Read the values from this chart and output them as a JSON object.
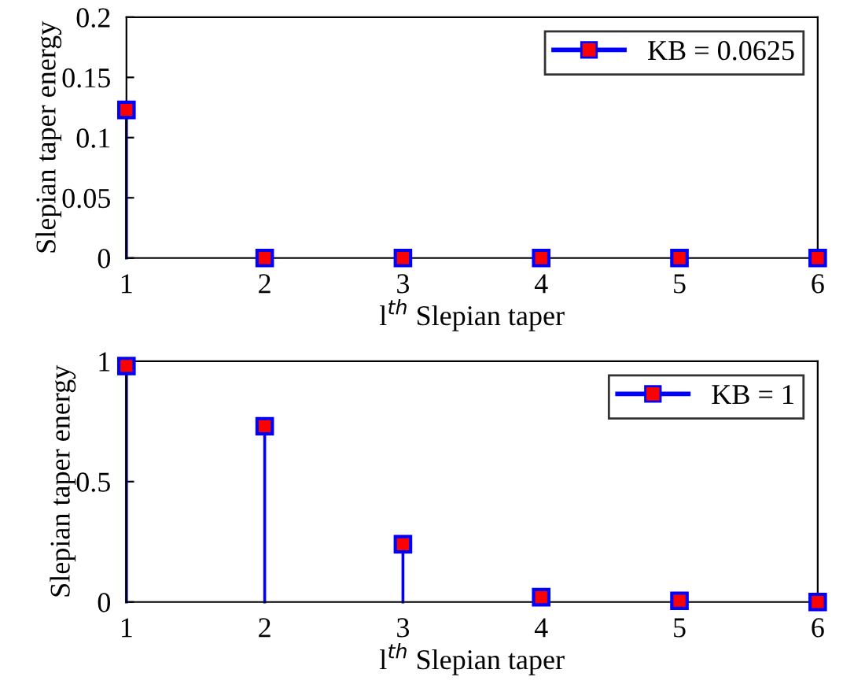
{
  "chart_data": [
    {
      "type": "lollipop",
      "xlabel": "l$^{th}$ Slepian taper",
      "ylabel": "Slepian taper energy",
      "x": [
        1,
        2,
        3,
        4,
        5,
        6
      ],
      "xlim": [
        1,
        6
      ],
      "xticks": [
        1,
        2,
        3,
        4,
        5,
        6
      ],
      "ylim": [
        0,
        0.2
      ],
      "yticks": [
        0,
        0.05,
        0.1,
        0.15,
        0.2
      ],
      "marker": "square",
      "legend": "top right",
      "series": [
        {
          "name": "KB = 0.0625",
          "color": "#0000ff",
          "values": [
            0.123,
            0,
            0,
            0,
            0,
            0
          ]
        }
      ]
    },
    {
      "type": "lollipop",
      "xlabel": "l$^{th}$ Slepian taper",
      "ylabel": "Slepian taper energy",
      "x": [
        1,
        2,
        3,
        4,
        5,
        6
      ],
      "xlim": [
        1,
        6
      ],
      "xticks": [
        1,
        2,
        3,
        4,
        5,
        6
      ],
      "ylim": [
        0,
        1
      ],
      "yticks": [
        0,
        0.5,
        1
      ],
      "marker": "square",
      "legend": "top right",
      "series": [
        {
          "name": "KB = 1",
          "color": "#0000ff",
          "values": [
            0.98,
            0.73,
            0.24,
            0.02,
            0.005,
            0.0
          ]
        }
      ]
    }
  ]
}
